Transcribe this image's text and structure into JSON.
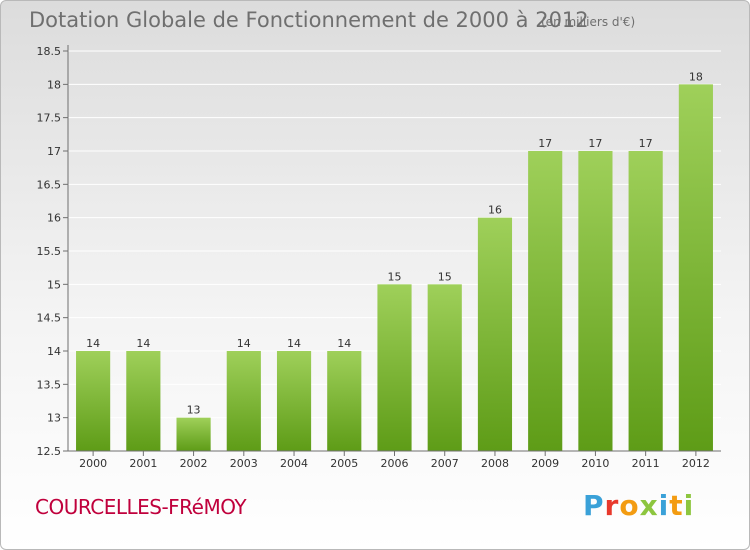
{
  "header": {
    "title": "Dotation Globale de Fonctionnement de 2000 à 2012",
    "unit": "(en milliers d'€)"
  },
  "footer": {
    "commune": "COURCELLES-FRéMOY",
    "logo_text": "Proxiti",
    "logo_colors": [
      "#3aa1d8",
      "#e8392c",
      "#f39c12",
      "#8dc63f",
      "#3aa1d8",
      "#f39c12",
      "#8dc63f"
    ]
  },
  "colors": {
    "bar_light": "#9fd05a",
    "bar_dark": "#5e9c17",
    "axis": "#6f6f6f",
    "grid": "#ffffff",
    "text": "#333333"
  },
  "chart_data": {
    "type": "bar",
    "categories": [
      "2000",
      "2001",
      "2002",
      "2003",
      "2004",
      "2005",
      "2006",
      "2007",
      "2008",
      "2009",
      "2010",
      "2011",
      "2012"
    ],
    "values": [
      14,
      14,
      13,
      14,
      14,
      14,
      15,
      15,
      16,
      17,
      17,
      17,
      18
    ],
    "ylim": [
      12.5,
      18.5
    ],
    "yticks": [
      12.5,
      13,
      13.5,
      14,
      14.5,
      15,
      15.5,
      16,
      16.5,
      17,
      17.5,
      18,
      18.5
    ],
    "grid": true
  }
}
